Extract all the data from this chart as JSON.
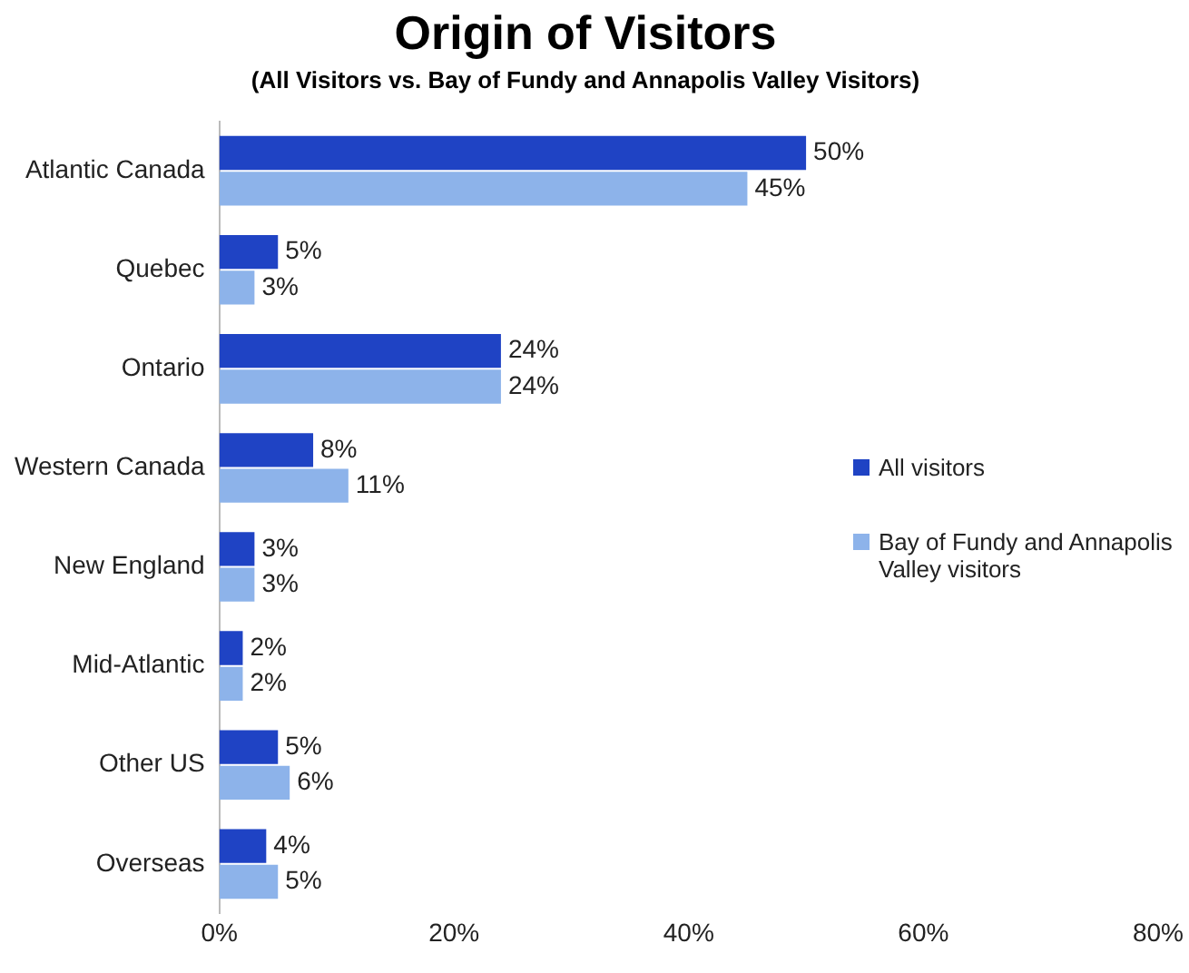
{
  "chart_data": {
    "type": "bar",
    "orientation": "horizontal",
    "title": "Origin of Visitors",
    "subtitle": "(All Visitors vs. Bay of Fundy and Annapolis Valley Visitors)",
    "categories": [
      "Atlantic Canada",
      "Quebec",
      "Ontario",
      "Western Canada",
      "New England",
      "Mid-Atlantic",
      "Other US",
      "Overseas"
    ],
    "series": [
      {
        "name": "All visitors",
        "color": "#1f43c4",
        "values": [
          50,
          5,
          24,
          8,
          3,
          2,
          5,
          4
        ],
        "value_labels": [
          "50%",
          "5%",
          "24%",
          "8%",
          "3%",
          "2%",
          "5%",
          "4%"
        ]
      },
      {
        "name": "Bay of Fundy and Annapolis Valley visitors",
        "color": "#8db3ea",
        "values": [
          45,
          3,
          24,
          11,
          3,
          2,
          6,
          5
        ],
        "value_labels": [
          "45%",
          "3%",
          "24%",
          "11%",
          "3%",
          "2%",
          "6%",
          "5%"
        ]
      }
    ],
    "xlim": [
      0,
      80
    ],
    "xticks": [
      {
        "value": 0,
        "label": "0%"
      },
      {
        "value": 20,
        "label": "20%"
      },
      {
        "value": 40,
        "label": "40%"
      },
      {
        "value": 60,
        "label": "60%"
      },
      {
        "value": 80,
        "label": "80%"
      }
    ],
    "grid": false,
    "legend": "right"
  }
}
